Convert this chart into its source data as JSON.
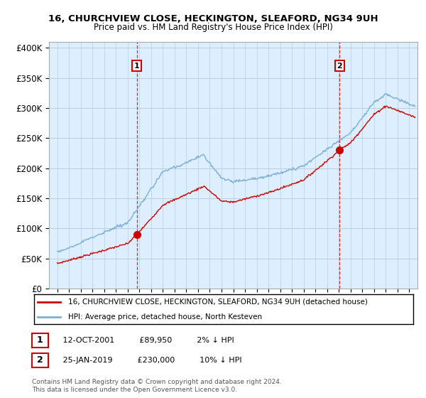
{
  "title_line1": "16, CHURCHVIEW CLOSE, HECKINGTON, SLEAFORD, NG34 9UH",
  "title_line2": "Price paid vs. HM Land Registry's House Price Index (HPI)",
  "hpi_color": "#7bafd4",
  "price_color": "#cc0000",
  "vline_color": "#cc0000",
  "bg_chart": "#ddeeff",
  "sale1_x": 2001.79,
  "sale1_y": 89950,
  "sale2_x": 2019.07,
  "sale2_y": 230000,
  "legend_line1": "16, CHURCHVIEW CLOSE, HECKINGTON, SLEAFORD, NG34 9UH (detached house)",
  "legend_line2": "HPI: Average price, detached house, North Kesteven",
  "note1_date": "12-OCT-2001",
  "note1_price": "£89,950",
  "note1_hpi": "2% ↓ HPI",
  "note2_date": "25-JAN-2019",
  "note2_price": "£230,000",
  "note2_hpi": "10% ↓ HPI",
  "copyright": "Contains HM Land Registry data © Crown copyright and database right 2024.\nThis data is licensed under the Open Government Licence v3.0.",
  "yticks": [
    0,
    50000,
    100000,
    150000,
    200000,
    250000,
    300000,
    350000,
    400000
  ],
  "ytick_labels": [
    "£0",
    "£50K",
    "£100K",
    "£150K",
    "£200K",
    "£250K",
    "£300K",
    "£350K",
    "£400K"
  ],
  "ylim": [
    0,
    410000
  ],
  "xlim_left": 1994.3,
  "xlim_right": 2025.7,
  "background_color": "#ffffff",
  "grid_color": "#bbccdd"
}
